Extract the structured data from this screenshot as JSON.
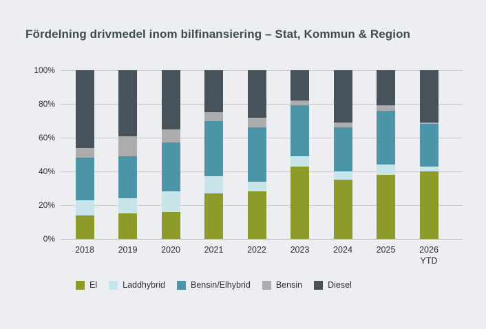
{
  "page": {
    "background_color": "#edeef1",
    "title_color": "#3e4a54",
    "text_color": "#2d2f31",
    "gridline_color": "#c9cbce",
    "axisline_color": "#b2b5b8"
  },
  "chart_data": {
    "type": "bar",
    "stacked": true,
    "orientation": "vertical",
    "title": "Fördelning drivmedel inom bilfinansiering – Stat, Kommun & Region",
    "unit": "%",
    "ylim": [
      0,
      100
    ],
    "y_ticks": [
      0,
      20,
      40,
      60,
      80,
      100
    ],
    "y_tick_suffix": "%",
    "grid": true,
    "legend_position": "bottom",
    "categories": [
      "2018",
      "2019",
      "2020",
      "2021",
      "2022",
      "2023",
      "2024",
      "2025",
      "2026"
    ],
    "category_sublabels": [
      "",
      "",
      "",
      "",
      "",
      "",
      "",
      "",
      "YTD"
    ],
    "series": [
      {
        "name": "El",
        "color": "#8e9b2b",
        "values": [
          14,
          15,
          16,
          27,
          28,
          43,
          35,
          38,
          40
        ]
      },
      {
        "name": "Laddhybrid",
        "color": "#c8e5ec",
        "values": [
          9,
          9,
          12,
          10,
          6,
          6,
          5,
          6,
          3
        ]
      },
      {
        "name": "Bensin/Elhybrid",
        "color": "#4a96a8",
        "values": [
          25,
          25,
          29,
          33,
          32,
          30,
          26,
          32,
          25
        ]
      },
      {
        "name": "Bensin",
        "color": "#aaacae",
        "values": [
          6,
          12,
          8,
          5,
          6,
          3,
          3,
          3,
          1
        ]
      },
      {
        "name": "Diesel",
        "color": "#47525b",
        "values": [
          46,
          39,
          35,
          25,
          28,
          18,
          31,
          21,
          31
        ]
      }
    ]
  }
}
